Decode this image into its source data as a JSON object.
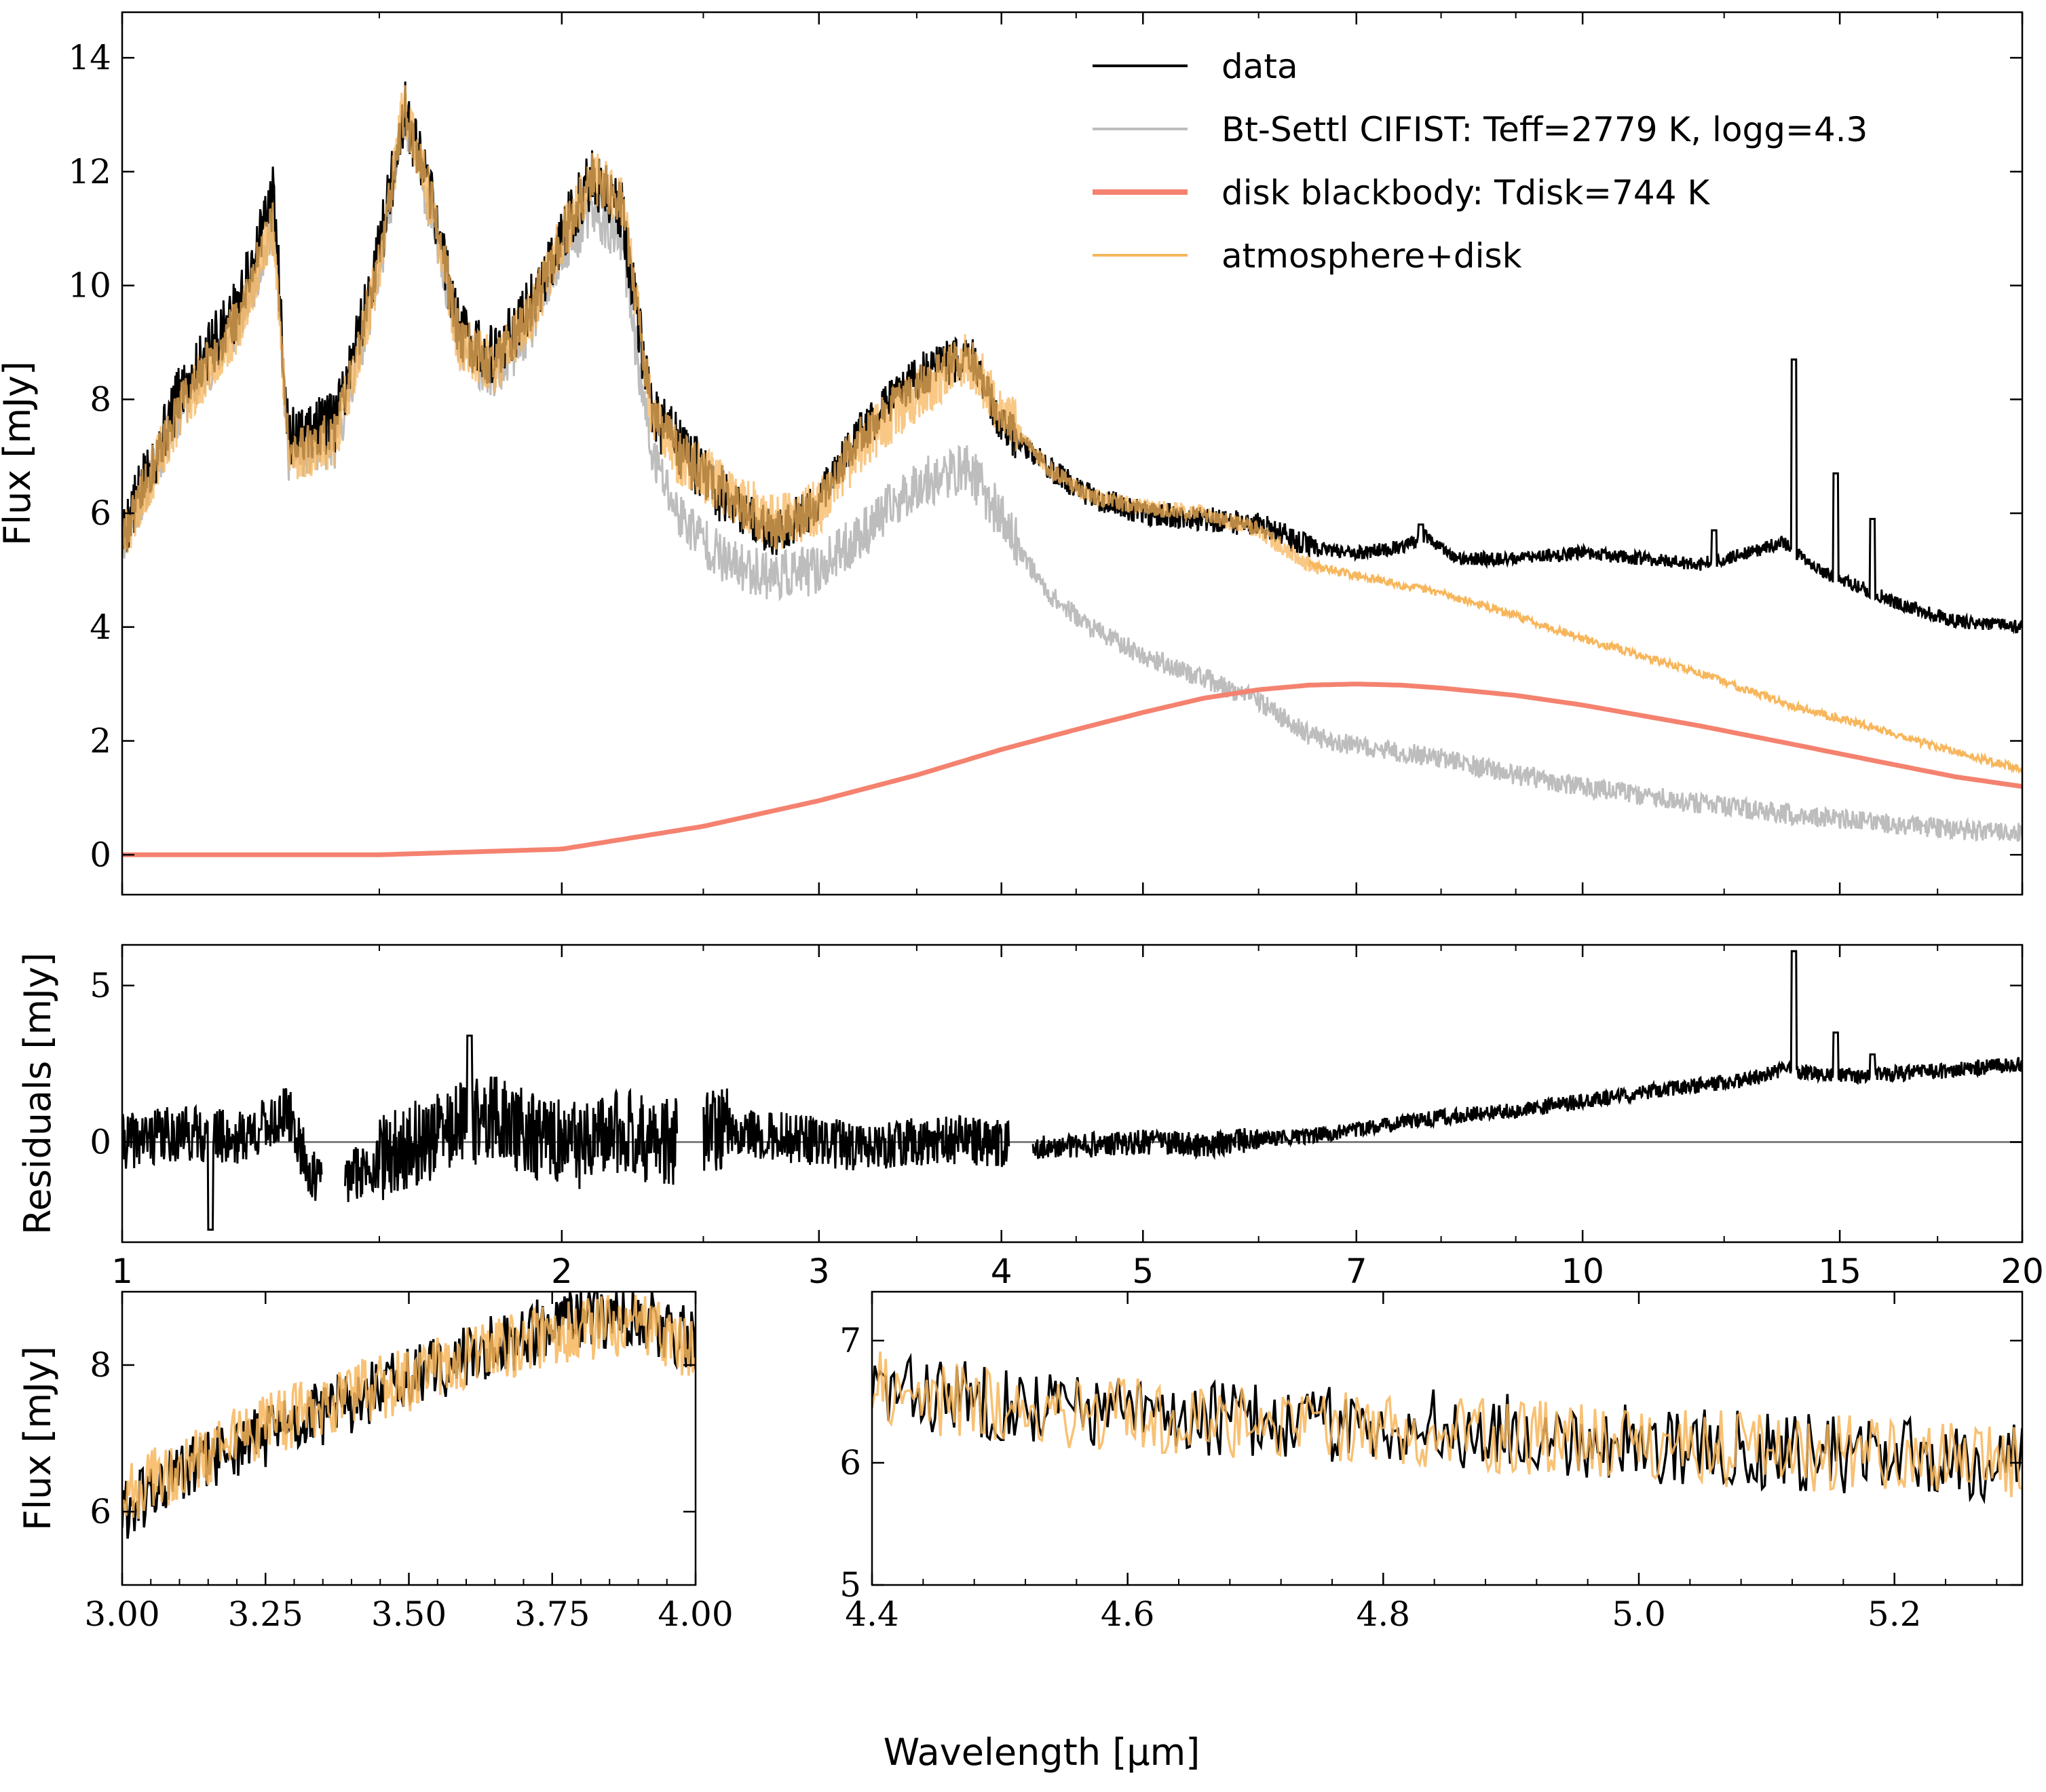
{
  "figure": {
    "xlabel": "Wavelength [μm]",
    "colors": {
      "data": "#000000",
      "model": "#bdbdbd",
      "disk": "#f4826f",
      "combined": "#f7b65c",
      "zero_line": "#808080"
    }
  },
  "chart_data": [
    {
      "name": "main",
      "type": "line",
      "xscale": "log",
      "xlim": [
        1,
        20
      ],
      "ylim": [
        -0.7,
        14.8
      ],
      "ylabel": "Flux [mJy]",
      "yticks": [
        "0",
        "2",
        "4",
        "6",
        "8",
        "10",
        "12",
        "14"
      ],
      "legend_position": "upper-right",
      "series": [
        {
          "name": "data",
          "x": [
            1.0,
            1.1,
            1.2,
            1.27,
            1.3,
            1.4,
            1.5,
            1.56,
            1.64,
            1.7,
            1.8,
            1.9,
            2.0,
            2.1,
            2.2,
            2.3,
            2.4,
            2.6,
            2.8,
            3.0,
            3.2,
            3.5,
            3.8,
            4.0,
            4.3,
            4.6,
            5.0,
            5.5,
            6.0,
            6.5,
            7.0,
            7.5,
            7.8,
            8.2,
            9.0,
            10.0,
            11.0,
            12.0,
            13.0,
            13.7,
            14.5,
            15.5,
            16.5,
            18.0,
            20.0
          ],
          "y": [
            5.6,
            8.2,
            9.6,
            11.6,
            7.3,
            7.6,
            10.6,
            13.1,
            11.2,
            9.2,
            8.7,
            9.6,
            10.9,
            11.9,
            11.3,
            7.8,
            7.2,
            6.2,
            5.6,
            6.2,
            7.4,
            8.4,
            8.8,
            7.6,
            6.8,
            6.3,
            6.0,
            5.9,
            5.8,
            5.4,
            5.3,
            5.4,
            5.6,
            5.2,
            5.2,
            5.3,
            5.2,
            5.1,
            5.3,
            5.5,
            5.0,
            4.7,
            4.4,
            4.1,
            4.0
          ],
          "spikes": [
            {
              "x": 13.95,
              "y": 8.7
            },
            {
              "x": 14.9,
              "y": 6.7
            },
            {
              "x": 15.8,
              "y": 5.9
            },
            {
              "x": 12.3,
              "y": 5.7
            },
            {
              "x": 7.75,
              "y": 5.8
            }
          ]
        },
        {
          "name": "Bt-Settl CIFIST: Teff=2779 K, logg=4.3",
          "x": [
            1.0,
            1.1,
            1.2,
            1.27,
            1.3,
            1.4,
            1.5,
            1.56,
            1.64,
            1.7,
            1.8,
            1.9,
            2.0,
            2.1,
            2.2,
            2.3,
            2.4,
            2.6,
            2.8,
            3.0,
            3.2,
            3.5,
            3.8,
            4.0,
            4.3,
            4.6,
            5.0,
            5.5,
            6.0,
            6.5,
            7.0,
            8.0,
            9.0,
            10.0,
            12.0,
            14.0,
            16.0,
            18.0,
            20.0
          ],
          "y": [
            5.5,
            7.9,
            9.3,
            11.0,
            7.0,
            7.2,
            10.2,
            13.0,
            11.0,
            8.9,
            8.4,
            9.2,
            10.5,
            11.3,
            10.7,
            7.1,
            6.0,
            5.1,
            4.9,
            5.0,
            5.6,
            6.5,
            6.8,
            5.9,
            4.6,
            4.0,
            3.5,
            3.1,
            2.7,
            2.1,
            1.9,
            1.7,
            1.4,
            1.2,
            0.9,
            0.7,
            0.55,
            0.45,
            0.38
          ]
        },
        {
          "name": "disk blackbody: Tdisk=744 K",
          "x": [
            1.0,
            1.5,
            2.0,
            2.5,
            3.0,
            3.5,
            4.0,
            4.5,
            5.0,
            5.5,
            6.0,
            6.5,
            7.0,
            7.5,
            8.0,
            9.0,
            10.0,
            12.0,
            14.0,
            16.0,
            18.0,
            20.0
          ],
          "y": [
            0.0,
            0.0,
            0.1,
            0.5,
            0.95,
            1.4,
            1.85,
            2.2,
            2.5,
            2.75,
            2.9,
            2.98,
            3.0,
            2.98,
            2.93,
            2.8,
            2.63,
            2.27,
            1.93,
            1.63,
            1.37,
            1.2
          ]
        },
        {
          "name": "atmosphere+disk",
          "x": [
            1.0,
            1.1,
            1.2,
            1.27,
            1.3,
            1.4,
            1.5,
            1.56,
            1.64,
            1.7,
            1.8,
            1.9,
            2.0,
            2.1,
            2.2,
            2.3,
            2.4,
            2.6,
            2.8,
            3.0,
            3.2,
            3.5,
            3.8,
            4.0,
            4.3,
            4.6,
            5.0,
            5.5,
            6.0,
            6.5,
            7.0,
            8.0,
            9.0,
            10.0,
            12.0,
            14.0,
            16.0,
            18.0,
            20.0
          ],
          "y": [
            5.5,
            7.9,
            9.3,
            11.1,
            7.0,
            7.3,
            10.3,
            13.2,
            11.1,
            9.0,
            8.6,
            9.4,
            10.8,
            11.9,
            11.5,
            7.9,
            7.0,
            6.4,
            5.8,
            6.1,
            7.2,
            8.1,
            8.7,
            7.8,
            6.8,
            6.3,
            6.1,
            6.0,
            5.7,
            5.1,
            4.9,
            4.6,
            4.2,
            3.8,
            3.2,
            2.6,
            2.2,
            1.8,
            1.5
          ]
        }
      ]
    },
    {
      "name": "residuals",
      "type": "line",
      "xscale": "log",
      "xlim": [
        1,
        20
      ],
      "ylim": [
        -3.2,
        6.3
      ],
      "ylabel": "Residuals [mJy]",
      "xticks": [
        "1",
        "2",
        "3",
        "4",
        "5",
        "7",
        "10",
        "15",
        "20"
      ],
      "yticks": [
        "0",
        "5"
      ],
      "zero_line": true,
      "series": [
        {
          "name": "residuals",
          "x": [
            1.0,
            1.1,
            1.2,
            1.3,
            1.35,
            1.4,
            1.5,
            1.6,
            1.7,
            1.8,
            1.9,
            2.0,
            2.1,
            2.2,
            2.3,
            2.4,
            2.6,
            2.8,
            3.0,
            3.3,
            3.6,
            4.0,
            4.3,
            4.6,
            5.0,
            5.5,
            6.0,
            6.5,
            7.0,
            7.5,
            8.0,
            9.0,
            10.0,
            11.0,
            12.0,
            13.0,
            13.7,
            14.5,
            15.5,
            16.5,
            18.0,
            20.0
          ],
          "y": [
            0.0,
            0.3,
            0.1,
            0.9,
            -1.2,
            -1.3,
            -0.6,
            0.0,
            0.5,
            0.8,
            0.2,
            0.0,
            -0.2,
            0.5,
            0.0,
            0.0,
            0.4,
            0.2,
            0.0,
            -0.2,
            0.1,
            0.0,
            -0.2,
            -0.1,
            0.0,
            -0.1,
            0.1,
            0.2,
            0.4,
            0.6,
            0.8,
            1.0,
            1.3,
            1.6,
            1.8,
            2.0,
            2.3,
            2.2,
            2.1,
            2.2,
            2.3,
            2.5
          ],
          "spikes": [
            {
              "x": 13.95,
              "y": 6.1
            },
            {
              "x": 14.9,
              "y": 3.5
            },
            {
              "x": 15.8,
              "y": 2.8
            },
            {
              "x": 1.73,
              "y": 3.4
            },
            {
              "x": 1.15,
              "y": -2.8
            }
          ],
          "gaps": [
            [
              1.37,
              1.42
            ],
            [
              2.4,
              2.5
            ],
            [
              4.05,
              4.2
            ]
          ]
        }
      ]
    },
    {
      "name": "zoom-3-4",
      "type": "line",
      "xscale": "linear",
      "xlim": [
        3.0,
        4.0
      ],
      "ylim": [
        5.0,
        9.0
      ],
      "ylabel": "Flux [mJy]",
      "xticks": [
        "3.00",
        "3.25",
        "3.50",
        "3.75",
        "4.00"
      ],
      "yticks": [
        "6",
        "8"
      ],
      "series": [
        {
          "name": "data",
          "x": [
            3.0,
            3.1,
            3.2,
            3.3,
            3.4,
            3.5,
            3.6,
            3.7,
            3.8,
            3.9,
            4.0
          ],
          "y": [
            6.0,
            6.5,
            6.9,
            7.2,
            7.5,
            7.8,
            8.1,
            8.4,
            8.6,
            8.7,
            8.3
          ]
        },
        {
          "name": "atmosphere+disk",
          "x": [
            3.0,
            3.1,
            3.2,
            3.3,
            3.4,
            3.5,
            3.6,
            3.7,
            3.8,
            3.9,
            4.0
          ],
          "y": [
            6.2,
            6.6,
            7.0,
            7.3,
            7.6,
            7.8,
            8.1,
            8.3,
            8.5,
            8.6,
            8.2
          ]
        }
      ]
    },
    {
      "name": "zoom-4.4-5.3",
      "type": "line",
      "xscale": "linear",
      "xlim": [
        4.4,
        5.3
      ],
      "ylim": [
        5.0,
        7.4
      ],
      "xticks": [
        "4.4",
        "4.6",
        "4.8",
        "5.0",
        "5.2"
      ],
      "yticks": [
        "5",
        "6",
        "7"
      ],
      "series": [
        {
          "name": "data",
          "x": [
            4.4,
            4.5,
            4.6,
            4.7,
            4.8,
            4.9,
            5.0,
            5.1,
            5.2,
            5.3
          ],
          "y": [
            6.6,
            6.5,
            6.4,
            6.35,
            6.3,
            6.25,
            6.15,
            6.1,
            6.05,
            6.0
          ]
        },
        {
          "name": "atmosphere+disk",
          "x": [
            4.4,
            4.5,
            4.6,
            4.7,
            4.8,
            4.9,
            5.0,
            5.1,
            5.2,
            5.3
          ],
          "y": [
            6.6,
            6.45,
            6.4,
            6.35,
            6.3,
            6.2,
            6.15,
            6.1,
            6.05,
            6.0
          ]
        }
      ]
    }
  ]
}
